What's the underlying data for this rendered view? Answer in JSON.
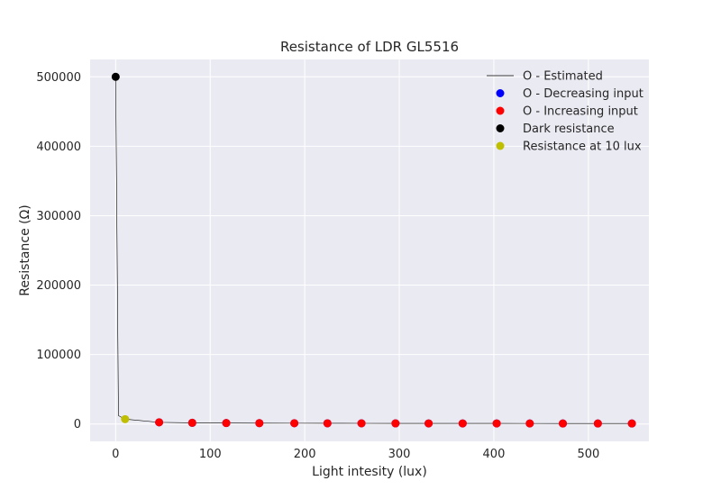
{
  "chart_data": {
    "type": "scatter",
    "title": "Resistance of LDR GL5516",
    "xlabel": "Light intesity (lux)",
    "ylabel": "Resistance (Ω)",
    "xlim": [
      -27,
      564
    ],
    "ylim": [
      -25000,
      525000
    ],
    "xticks": [
      0,
      100,
      200,
      300,
      400,
      500
    ],
    "yticks": [
      0,
      100000,
      200000,
      300000,
      400000,
      500000
    ],
    "grid": true,
    "legend_position": "top-right",
    "background_color": "#eaeaf2",
    "grid_color": "#ffffff",
    "series": [
      {
        "name": "O - Estimated",
        "kind": "line",
        "color": "#000000",
        "points": [
          [
            0,
            500000
          ],
          [
            3,
            12000
          ],
          [
            10,
            7000
          ],
          [
            46,
            2400
          ],
          [
            81,
            1700
          ],
          [
            117,
            1400
          ],
          [
            152,
            1200
          ],
          [
            189,
            1100
          ],
          [
            224,
            1000
          ],
          [
            260,
            950
          ],
          [
            296,
            900
          ],
          [
            331,
            860
          ],
          [
            367,
            830
          ],
          [
            403,
            800
          ],
          [
            438,
            780
          ],
          [
            473,
            760
          ],
          [
            510,
            740
          ],
          [
            546,
            720
          ]
        ]
      },
      {
        "name": "O - Decreasing input",
        "kind": "marker",
        "color": "#0000ff",
        "points": [
          [
            46,
            2400
          ],
          [
            81,
            1700
          ],
          [
            117,
            1400
          ],
          [
            152,
            1200
          ],
          [
            189,
            1100
          ],
          [
            224,
            1000
          ],
          [
            260,
            950
          ],
          [
            296,
            900
          ],
          [
            331,
            860
          ],
          [
            367,
            830
          ],
          [
            403,
            800
          ],
          [
            438,
            780
          ],
          [
            473,
            760
          ],
          [
            510,
            740
          ],
          [
            546,
            720
          ]
        ]
      },
      {
        "name": "O - Increasing input",
        "kind": "marker",
        "color": "#ff0000",
        "points": [
          [
            46,
            2400
          ],
          [
            81,
            1700
          ],
          [
            117,
            1400
          ],
          [
            152,
            1200
          ],
          [
            189,
            1100
          ],
          [
            224,
            1000
          ],
          [
            260,
            950
          ],
          [
            296,
            900
          ],
          [
            331,
            860
          ],
          [
            367,
            830
          ],
          [
            403,
            800
          ],
          [
            438,
            780
          ],
          [
            473,
            760
          ],
          [
            510,
            740
          ],
          [
            546,
            720
          ]
        ]
      },
      {
        "name": "Dark resistance",
        "kind": "marker",
        "color": "#000000",
        "points": [
          [
            0,
            500000
          ]
        ]
      },
      {
        "name": "Resistance at 10 lux",
        "kind": "marker",
        "color": "#bfbf00",
        "points": [
          [
            10,
            7000
          ]
        ]
      }
    ]
  }
}
